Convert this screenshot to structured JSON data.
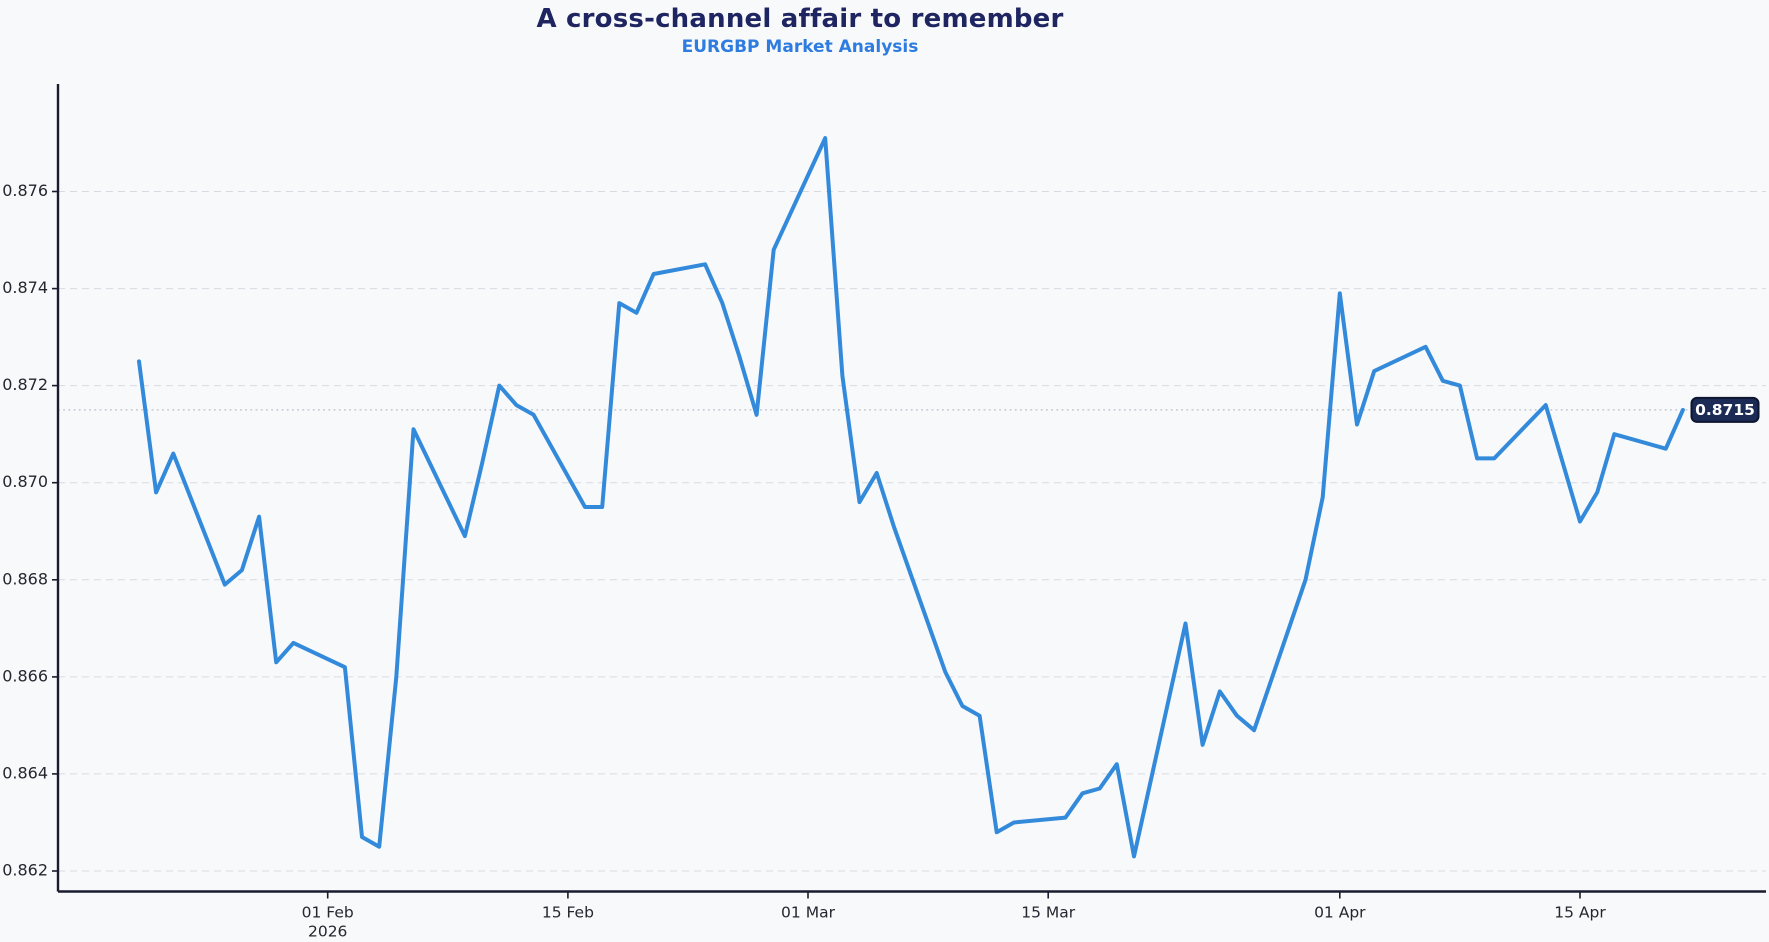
{
  "header": {
    "title": "A cross-channel affair to remember",
    "subtitle": "EURGBP Market Analysis"
  },
  "chart_data": {
    "type": "line",
    "title": "A cross-channel affair to remember",
    "subtitle": "EURGBP Market Analysis",
    "grid": "horizontal-dashed",
    "legend": "none",
    "ylim": [
      0.8616,
      0.8782
    ],
    "yticks": [
      0.862,
      0.864,
      0.866,
      0.868,
      0.87,
      0.872,
      0.874,
      0.876
    ],
    "ytick_labels": [
      "0.862",
      "0.864",
      "0.866",
      "0.868",
      "0.870",
      "0.872",
      "0.874",
      "0.876"
    ],
    "xticks": [
      {
        "date": "2026-02-01",
        "label": "01 Feb",
        "sublabel": "2026"
      },
      {
        "date": "2026-02-15",
        "label": "15 Feb",
        "sublabel": ""
      },
      {
        "date": "2026-03-01",
        "label": "01 Mar",
        "sublabel": ""
      },
      {
        "date": "2026-03-15",
        "label": "15 Mar",
        "sublabel": ""
      },
      {
        "date": "2026-04-01",
        "label": "01 Apr",
        "sublabel": ""
      },
      {
        "date": "2026-04-15",
        "label": "15 Apr",
        "sublabel": ""
      }
    ],
    "current_value": 0.8715,
    "annotation": {
      "label": "0.8715"
    },
    "series": [
      {
        "name": "EURGBP",
        "dates": [
          "2026-01-21",
          "2026-01-22",
          "2026-01-23",
          "2026-01-26",
          "2026-01-27",
          "2026-01-28",
          "2026-01-29",
          "2026-01-30",
          "2026-02-02",
          "2026-02-03",
          "2026-02-04",
          "2026-02-05",
          "2026-02-06",
          "2026-02-09",
          "2026-02-10",
          "2026-02-11",
          "2026-02-12",
          "2026-02-13",
          "2026-02-16",
          "2026-02-17",
          "2026-02-18",
          "2026-02-19",
          "2026-02-20",
          "2026-02-23",
          "2026-02-24",
          "2026-02-25",
          "2026-02-26",
          "2026-02-27",
          "2026-03-02",
          "2026-03-03",
          "2026-03-04",
          "2026-03-05",
          "2026-03-06",
          "2026-03-09",
          "2026-03-10",
          "2026-03-11",
          "2026-03-12",
          "2026-03-13",
          "2026-03-16",
          "2026-03-17",
          "2026-03-18",
          "2026-03-19",
          "2026-03-20",
          "2026-03-23",
          "2026-03-24",
          "2026-03-25",
          "2026-03-26",
          "2026-03-27",
          "2026-03-30",
          "2026-03-31",
          "2026-04-01",
          "2026-04-02",
          "2026-04-03",
          "2026-04-06",
          "2026-04-07",
          "2026-04-08",
          "2026-04-09",
          "2026-04-10",
          "2026-04-13",
          "2026-04-14",
          "2026-04-15",
          "2026-04-16",
          "2026-04-17",
          "2026-04-20",
          "2026-04-21"
        ],
        "values": [
          0.8725,
          0.8698,
          0.8706,
          0.8679,
          0.8682,
          0.8693,
          0.8663,
          0.8667,
          0.8662,
          0.8627,
          0.8625,
          0.866,
          0.8711,
          0.8689,
          0.8704,
          0.872,
          0.8716,
          0.8714,
          0.8695,
          0.8695,
          0.8737,
          0.8735,
          0.8743,
          0.8745,
          0.8737,
          0.8726,
          0.8714,
          0.8748,
          0.8771,
          0.8722,
          0.8696,
          0.8702,
          0.8691,
          0.8661,
          0.8654,
          0.8652,
          0.8628,
          0.863,
          0.8631,
          0.8636,
          0.8637,
          0.8642,
          0.8623,
          0.8671,
          0.8646,
          0.8657,
          0.8652,
          0.8649,
          0.868,
          0.8697,
          0.8739,
          0.8712,
          0.8723,
          0.8728,
          0.8721,
          0.872,
          0.8705,
          0.8705,
          0.8716,
          0.8704,
          0.8692,
          0.8698,
          0.871,
          0.8707,
          0.8715
        ]
      }
    ],
    "colors": {
      "line": "#338ADB",
      "annotation_bg": "#1C2B55",
      "annotation_border": "#0D1530",
      "title": "#1E2560",
      "subtitle": "#2E7CDF",
      "background": "#F8F9FB",
      "grid": "#D7DAE1",
      "dotted_line": "#B9BEC9",
      "axis": "#191C2E",
      "tick_label": "#262630"
    }
  }
}
